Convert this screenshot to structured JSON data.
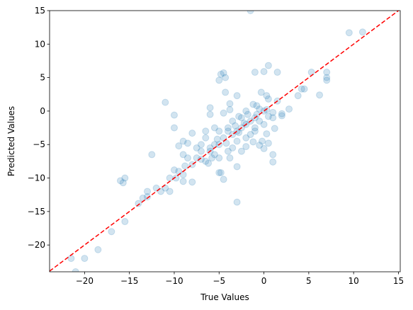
{
  "chart_data": {
    "type": "scatter",
    "xlabel": "True Values",
    "ylabel": "Predicted Values",
    "color": "#1f77b4",
    "alpha": 0.2,
    "xlim": [
      -23.9,
      15.2
    ],
    "ylim": [
      -24,
      15
    ],
    "xticks": [
      {
        "value": -20,
        "label": "−20"
      },
      {
        "value": -15,
        "label": "−15"
      },
      {
        "value": -10,
        "label": "−10"
      },
      {
        "value": -5,
        "label": "−5"
      },
      0,
      5,
      10,
      15
    ],
    "yticks": [
      {
        "value": -20,
        "label": "−20"
      },
      {
        "value": -15,
        "label": "−15"
      },
      {
        "value": -10,
        "label": "−10"
      },
      {
        "value": -5,
        "label": "−5"
      },
      0,
      5,
      10,
      15
    ],
    "x": [
      -21.5,
      -20,
      -21,
      -18.5,
      -17,
      -15.5,
      -14,
      -13.5,
      -13,
      -13,
      -16,
      -15.7,
      -15.5,
      -12.5,
      -11,
      -10,
      -10,
      -1.5,
      9.5,
      11,
      5.3,
      7,
      7,
      7,
      6.2,
      4.2,
      4.5,
      3.8,
      -3,
      -4.5,
      -3,
      1,
      1,
      0,
      -0.5,
      0.5,
      -4.8,
      -5,
      -6.5,
      -8,
      -9,
      -10.5,
      -10.5,
      -11.5,
      -12,
      -11,
      -10,
      -9.5,
      -9,
      -8,
      -7.5,
      -7,
      -8,
      -8.5,
      -9,
      -9.5,
      -9,
      -6.5,
      -6,
      -6,
      -5,
      -4.5,
      -4.8,
      -4.3,
      -4.3,
      -3.8,
      -3,
      -1,
      0,
      0.5,
      1.5,
      -0.3,
      0.3,
      0.5,
      1.5,
      2.8,
      2,
      2,
      1,
      0,
      0.3,
      -0.5,
      -0.8,
      -1,
      -1.5,
      -2,
      -2.5,
      -3,
      -3.5,
      -4,
      -4.5,
      -5,
      -5.5,
      -6,
      -2,
      -2.5,
      -3.5,
      -4,
      -5,
      -5.5,
      -3,
      -2,
      -1,
      0,
      1,
      -1.5,
      -2.5,
      -4,
      -5,
      -3.5,
      -6.5,
      -7,
      -7.5,
      -1,
      -0.5,
      0.5,
      -1.8,
      -2.8,
      -1.2,
      -0.8,
      -4.5,
      -3.8,
      -2.2,
      -2.8,
      -3.2,
      -4.2,
      -5.2,
      -6,
      -6.2,
      -5.8,
      1.2,
      0.3,
      -0.2,
      -1.2,
      -2,
      -3.8,
      -5.5,
      -8.8,
      -9.8,
      -7,
      -8.5
    ],
    "values": [
      -22,
      -22,
      -24,
      -20.7,
      -18,
      -16.5,
      -13.8,
      -13,
      -12,
      -12.8,
      -10.4,
      -10.7,
      -10,
      -6.5,
      1.3,
      -0.6,
      -2.5,
      15,
      11.7,
      11.8,
      5.8,
      5.8,
      5,
      4.6,
      2.4,
      3.3,
      3.3,
      2.3,
      -13.6,
      -10.2,
      -8.3,
      -7.6,
      -6.5,
      -5.6,
      -5.1,
      -4.8,
      -9.2,
      -9.2,
      -7.5,
      -10.6,
      -10.5,
      -10,
      -12,
      -12,
      -11.5,
      -11.5,
      -8.8,
      -9,
      -9.5,
      -8,
      -7,
      -6,
      -3.3,
      -4.8,
      -4.5,
      -5.2,
      -6.5,
      -3,
      -0.5,
      0.5,
      4.6,
      5.7,
      5.5,
      5,
      2.8,
      1.1,
      2.3,
      5.8,
      5.9,
      6.8,
      5.8,
      2.8,
      2.3,
      1.8,
      1.5,
      0.3,
      -0.4,
      -0.7,
      -0.2,
      0,
      0.2,
      0.3,
      -0.5,
      -1,
      -1.5,
      -2,
      -2.5,
      -3,
      -3.5,
      -3,
      -4,
      -5,
      -5,
      -6,
      0,
      -1,
      -1.5,
      -2.5,
      -3,
      -2.5,
      -4.5,
      -4,
      -3,
      -2,
      -1,
      -3.5,
      -6,
      -6,
      -7,
      -5.5,
      -4,
      -5,
      -5.5,
      -2.5,
      -1.5,
      -0.8,
      -0.5,
      -0.8,
      1,
      0.8,
      -0.3,
      0.2,
      -1.8,
      -3.2,
      -2.2,
      -4.8,
      -4.2,
      -5.5,
      -7.8,
      -7,
      -2.6,
      -3.4,
      -4.5,
      -4.6,
      -5.3,
      -7,
      -6.5,
      -8.2,
      -10,
      -7.2,
      -7
    ],
    "reference_line": {
      "x": [
        -23.9,
        15.2
      ],
      "y": [
        -23.9,
        15.2
      ],
      "color": "#ff0000",
      "dashed": true
    }
  }
}
